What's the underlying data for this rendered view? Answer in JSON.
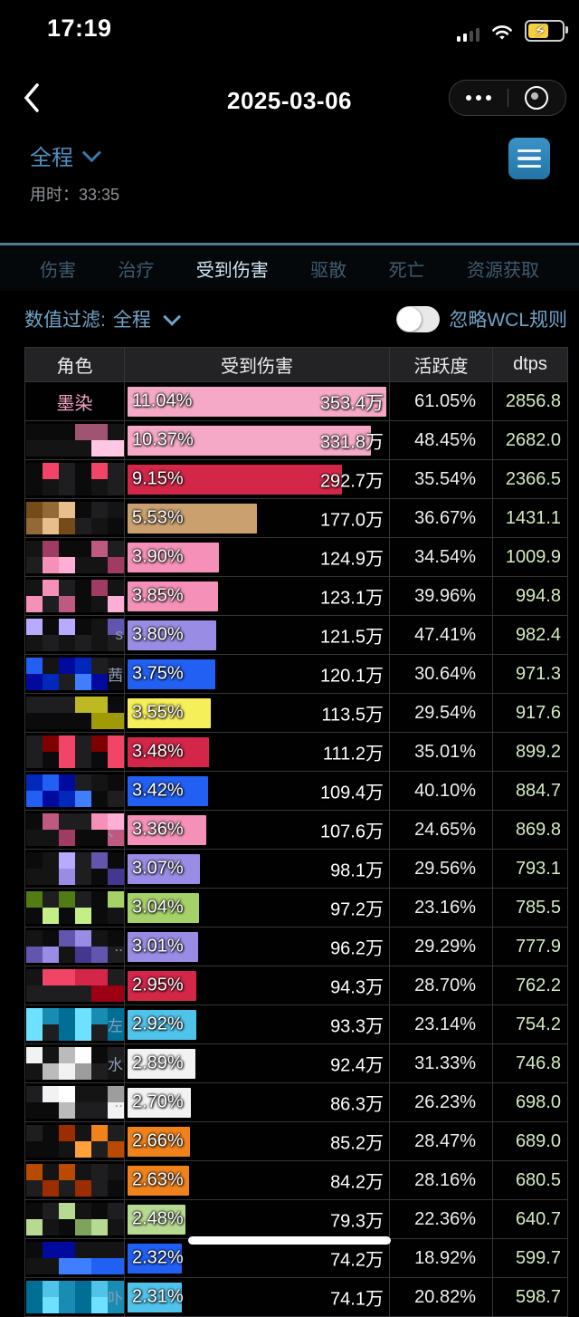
{
  "status_bar": {
    "time": "17:19",
    "icons": [
      "cellular-signal-icon",
      "wifi-icon",
      "battery-charging-icon"
    ]
  },
  "nav": {
    "title": "2025-03-06",
    "back_icon": "chevron-left-icon",
    "more_icon": "ellipsis-icon",
    "record_icon": "record-circle-icon"
  },
  "subheader": {
    "range_value": "全程",
    "range_chevron_icon": "chevron-down-icon",
    "duration_prefix": "用时：",
    "duration_value": "33:35",
    "menu_icon": "hamburger-menu-icon"
  },
  "tabs": [
    {
      "label": "伤害",
      "active": false
    },
    {
      "label": "治疗",
      "active": false
    },
    {
      "label": "受到伤害",
      "active": true
    },
    {
      "label": "驱散",
      "active": false
    },
    {
      "label": "死亡",
      "active": false
    },
    {
      "label": "资源获取",
      "active": false
    }
  ],
  "filter": {
    "label": "数值过滤:",
    "value": "全程",
    "chevron_icon": "chevron-down-icon",
    "toggle_on": false,
    "toggle_label": "忽略WCL规则"
  },
  "table": {
    "columns": [
      "角色",
      "受到伤害",
      "活跃度",
      "dtps"
    ],
    "max_pct": 11.04,
    "rows": [
      {
        "name": "墨染",
        "censored": false,
        "name_suffix": "",
        "pct": "11.04%",
        "value": "353.4万",
        "activity": "61.05%",
        "dtps": "2856.8",
        "bar_color": "#f6a9c6"
      },
      {
        "name": "",
        "censored": true,
        "name_suffix": "",
        "pct": "10.37%",
        "value": "331.8万",
        "activity": "48.45%",
        "dtps": "2682.0",
        "bar_color": "#f6a9c6"
      },
      {
        "name": "",
        "censored": true,
        "name_suffix": "",
        "pct": "9.15%",
        "value": "292.7万",
        "activity": "35.54%",
        "dtps": "2366.5",
        "bar_color": "#d32649"
      },
      {
        "name": "",
        "censored": true,
        "name_suffix": "",
        "pct": "5.53%",
        "value": "177.0万",
        "activity": "36.67%",
        "dtps": "1431.1",
        "bar_color": "#c9a06e"
      },
      {
        "name": "",
        "censored": true,
        "name_suffix": "",
        "pct": "3.90%",
        "value": "124.9万",
        "activity": "34.54%",
        "dtps": "1009.9",
        "bar_color": "#f590b8"
      },
      {
        "name": "",
        "censored": true,
        "name_suffix": "",
        "pct": "3.85%",
        "value": "123.1万",
        "activity": "39.96%",
        "dtps": "994.8",
        "bar_color": "#f590b8"
      },
      {
        "name": "",
        "censored": true,
        "name_suffix": "s",
        "pct": "3.80%",
        "value": "121.5万",
        "activity": "47.41%",
        "dtps": "982.4",
        "bar_color": "#998ce4"
      },
      {
        "name": "",
        "censored": true,
        "name_suffix": "茜",
        "pct": "3.75%",
        "value": "120.1万",
        "activity": "30.64%",
        "dtps": "971.3",
        "bar_color": "#2160f2"
      },
      {
        "name": "",
        "censored": true,
        "name_suffix": "..",
        "pct": "3.55%",
        "value": "113.5万",
        "activity": "29.54%",
        "dtps": "917.6",
        "bar_color": "#f5ef59"
      },
      {
        "name": "",
        "censored": true,
        "name_suffix": "",
        "pct": "3.48%",
        "value": "111.2万",
        "activity": "35.01%",
        "dtps": "899.2",
        "bar_color": "#d32649"
      },
      {
        "name": "",
        "censored": true,
        "name_suffix": "",
        "pct": "3.42%",
        "value": "109.4万",
        "activity": "40.10%",
        "dtps": "884.7",
        "bar_color": "#2160f2"
      },
      {
        "name": "",
        "censored": true,
        "name_suffix": "、",
        "pct": "3.36%",
        "value": "107.6万",
        "activity": "24.65%",
        "dtps": "869.8",
        "bar_color": "#f590b8"
      },
      {
        "name": "",
        "censored": true,
        "name_suffix": "",
        "pct": "3.07%",
        "value": "98.1万",
        "activity": "29.56%",
        "dtps": "793.1",
        "bar_color": "#998ce4"
      },
      {
        "name": "",
        "censored": true,
        "name_suffix": "",
        "pct": "3.04%",
        "value": "97.2万",
        "activity": "23.16%",
        "dtps": "785.5",
        "bar_color": "#a6d168"
      },
      {
        "name": "",
        "censored": true,
        "name_suffix": "..",
        "pct": "3.01%",
        "value": "96.2万",
        "activity": "29.29%",
        "dtps": "777.9",
        "bar_color": "#998ce4"
      },
      {
        "name": "",
        "censored": true,
        "name_suffix": "",
        "pct": "2.95%",
        "value": "94.3万",
        "activity": "28.70%",
        "dtps": "762.2",
        "bar_color": "#d32649"
      },
      {
        "name": "",
        "censored": true,
        "name_suffix": "左",
        "pct": "2.92%",
        "value": "93.3万",
        "activity": "23.14%",
        "dtps": "754.2",
        "bar_color": "#4fc3ea"
      },
      {
        "name": "",
        "censored": true,
        "name_suffix": "水",
        "pct": "2.89%",
        "value": "92.4万",
        "activity": "31.33%",
        "dtps": "746.8",
        "bar_color": "#f2f2f3"
      },
      {
        "name": "",
        "censored": true,
        "name_suffix": "..",
        "pct": "2.70%",
        "value": "86.3万",
        "activity": "26.23%",
        "dtps": "698.0",
        "bar_color": "#f2f2f3"
      },
      {
        "name": "",
        "censored": true,
        "name_suffix": "",
        "pct": "2.66%",
        "value": "85.2万",
        "activity": "28.47%",
        "dtps": "689.0",
        "bar_color": "#f0821c"
      },
      {
        "name": "",
        "censored": true,
        "name_suffix": "",
        "pct": "2.63%",
        "value": "84.2万",
        "activity": "28.16%",
        "dtps": "680.5",
        "bar_color": "#f0821c"
      },
      {
        "name": "",
        "censored": true,
        "name_suffix": "",
        "pct": "2.48%",
        "value": "79.3万",
        "activity": "22.36%",
        "dtps": "640.7",
        "bar_color": "#b7da92"
      },
      {
        "name": "",
        "censored": true,
        "name_suffix": "",
        "pct": "2.32%",
        "value": "74.2万",
        "activity": "18.92%",
        "dtps": "599.7",
        "bar_color": "#2160f2"
      },
      {
        "name": "",
        "censored": true,
        "name_suffix": "卟",
        "pct": "2.31%",
        "value": "74.1万",
        "activity": "20.82%",
        "dtps": "598.7",
        "bar_color": "#4fc3ea"
      }
    ]
  },
  "colors": {
    "accent_blue": "#4e8fbf",
    "tab_active": "#d2e6f4",
    "tab_inactive": "#3f5b6e",
    "filter_text": "#6fa3c7",
    "dtps_text": "#d5eac2",
    "divider_blue": "#527a92",
    "name_pink": "#f1a3c3",
    "battery_charge_yellow": "#f7ce3e"
  }
}
